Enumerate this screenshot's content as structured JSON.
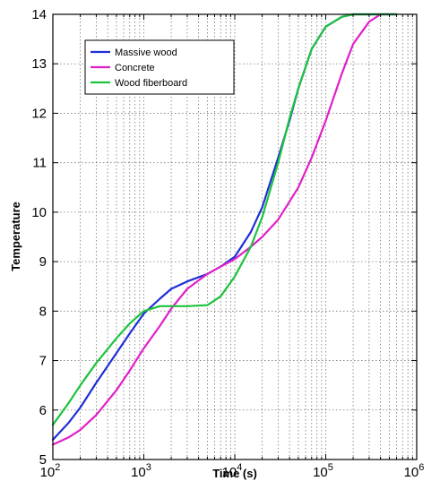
{
  "chart_data": {
    "type": "line",
    "title": "",
    "xlabel": "Time (s)",
    "ylabel": "Temperature",
    "xscale": "log",
    "xlim": [
      100,
      1000000
    ],
    "ylim": [
      5,
      14
    ],
    "grid": true,
    "legend_position": "top-left",
    "x_ticks": [
      {
        "base": "10",
        "exp": "2",
        "value": 100
      },
      {
        "base": "10",
        "exp": "3",
        "value": 1000
      },
      {
        "base": "10",
        "exp": "4",
        "value": 10000
      },
      {
        "base": "10",
        "exp": "5",
        "value": 100000
      },
      {
        "base": "10",
        "exp": "6",
        "value": 1000000
      }
    ],
    "y_ticks": [
      "5",
      "6",
      "7",
      "8",
      "9",
      "10",
      "11",
      "12",
      "13",
      "14"
    ],
    "series": [
      {
        "name": "Massive wood",
        "color": "#1f2fd6",
        "points": [
          [
            100,
            5.4
          ],
          [
            150,
            5.75
          ],
          [
            200,
            6.05
          ],
          [
            300,
            6.55
          ],
          [
            500,
            7.15
          ],
          [
            700,
            7.55
          ],
          [
            1000,
            7.95
          ],
          [
            1500,
            8.25
          ],
          [
            2000,
            8.45
          ],
          [
            3000,
            8.6
          ],
          [
            5000,
            8.75
          ],
          [
            7000,
            8.9
          ],
          [
            10000,
            9.1
          ],
          [
            15000,
            9.6
          ],
          [
            20000,
            10.1
          ],
          [
            30000,
            11.1
          ],
          [
            40000,
            11.85
          ],
          [
            50000,
            12.5
          ],
          [
            70000,
            13.3
          ],
          [
            100000,
            13.75
          ],
          [
            150000,
            13.95
          ],
          [
            200000,
            14.0
          ],
          [
            600000,
            14.0
          ]
        ]
      },
      {
        "name": "Concrete",
        "color": "#e020c8",
        "points": [
          [
            100,
            5.3
          ],
          [
            150,
            5.45
          ],
          [
            200,
            5.6
          ],
          [
            300,
            5.9
          ],
          [
            500,
            6.4
          ],
          [
            700,
            6.8
          ],
          [
            1000,
            7.25
          ],
          [
            1500,
            7.7
          ],
          [
            2000,
            8.05
          ],
          [
            3000,
            8.45
          ],
          [
            5000,
            8.75
          ],
          [
            7000,
            8.9
          ],
          [
            10000,
            9.05
          ],
          [
            15000,
            9.3
          ],
          [
            20000,
            9.5
          ],
          [
            30000,
            9.85
          ],
          [
            50000,
            10.5
          ],
          [
            70000,
            11.1
          ],
          [
            100000,
            11.85
          ],
          [
            150000,
            12.8
          ],
          [
            200000,
            13.4
          ],
          [
            300000,
            13.85
          ],
          [
            400000,
            14.0
          ],
          [
            600000,
            14.0
          ]
        ]
      },
      {
        "name": "Wood fiberboard",
        "color": "#1cc33c",
        "points": [
          [
            100,
            5.7
          ],
          [
            150,
            6.15
          ],
          [
            200,
            6.5
          ],
          [
            300,
            6.95
          ],
          [
            500,
            7.45
          ],
          [
            700,
            7.75
          ],
          [
            1000,
            8.0
          ],
          [
            1500,
            8.1
          ],
          [
            2000,
            8.1
          ],
          [
            3000,
            8.1
          ],
          [
            5000,
            8.12
          ],
          [
            7000,
            8.3
          ],
          [
            10000,
            8.7
          ],
          [
            15000,
            9.3
          ],
          [
            20000,
            9.9
          ],
          [
            30000,
            11.0
          ],
          [
            40000,
            11.9
          ],
          [
            50000,
            12.5
          ],
          [
            70000,
            13.3
          ],
          [
            100000,
            13.75
          ],
          [
            150000,
            13.95
          ],
          [
            200000,
            14.0
          ],
          [
            600000,
            14.0
          ]
        ]
      }
    ]
  }
}
